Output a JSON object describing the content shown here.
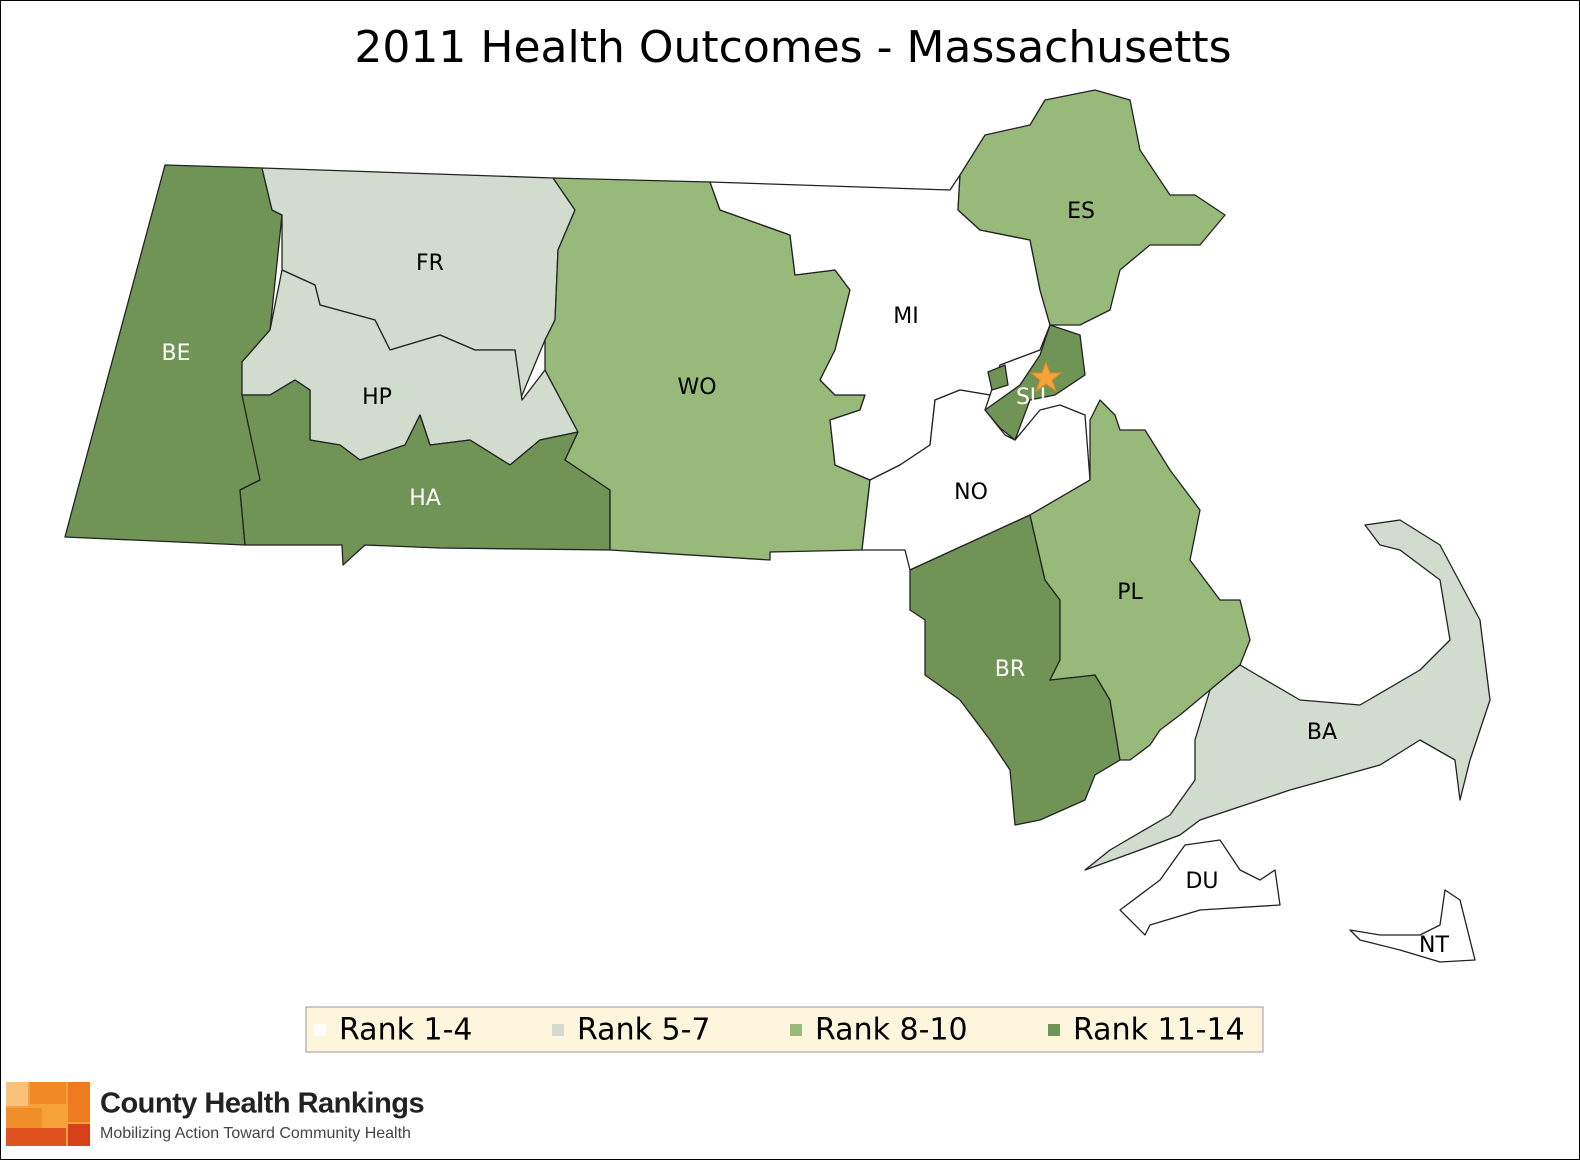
{
  "title": "2011 Health Outcomes - Massachusetts",
  "counties": [
    {
      "label": "BE",
      "color": "#6f9455",
      "label_color": "#ffffff"
    },
    {
      "label": "FR",
      "color": "#d1dccf",
      "label_color": "#000000"
    },
    {
      "label": "HP",
      "color": "#d1dccf",
      "label_color": "#000000"
    },
    {
      "label": "HA",
      "color": "#6f9455",
      "label_color": "#ffffff"
    },
    {
      "label": "WO",
      "color": "#97ba7b",
      "label_color": "#000000"
    },
    {
      "label": "MI",
      "color": "#ffffff",
      "label_color": "#000000"
    },
    {
      "label": "ES",
      "color": "#97ba7b",
      "label_color": "#000000"
    },
    {
      "label": "SU",
      "color": "#6f9455",
      "label_color": "#ffffff"
    },
    {
      "label": "NO",
      "color": "#ffffff",
      "label_color": "#000000"
    },
    {
      "label": "BR",
      "color": "#6f9455",
      "label_color": "#ffffff"
    },
    {
      "label": "PL",
      "color": "#97ba7b",
      "label_color": "#000000"
    },
    {
      "label": "BA",
      "color": "#d1dccf",
      "label_color": "#000000"
    },
    {
      "label": "DU",
      "color": "#ffffff",
      "label_color": "#000000"
    },
    {
      "label": "NT",
      "color": "#ffffff",
      "label_color": "#000000"
    }
  ],
  "legend": {
    "items": [
      {
        "label": "Rank 1-4",
        "color": "#ffffff"
      },
      {
        "label": "Rank 5-7",
        "color": "#d1dccf"
      },
      {
        "label": "Rank 8-10",
        "color": "#97ba7b"
      },
      {
        "label": "Rank 11-14",
        "color": "#6f9455"
      }
    ]
  },
  "logo": {
    "name": "County Health Rankings",
    "tagline": "Mobilizing Action Toward Community Health"
  }
}
